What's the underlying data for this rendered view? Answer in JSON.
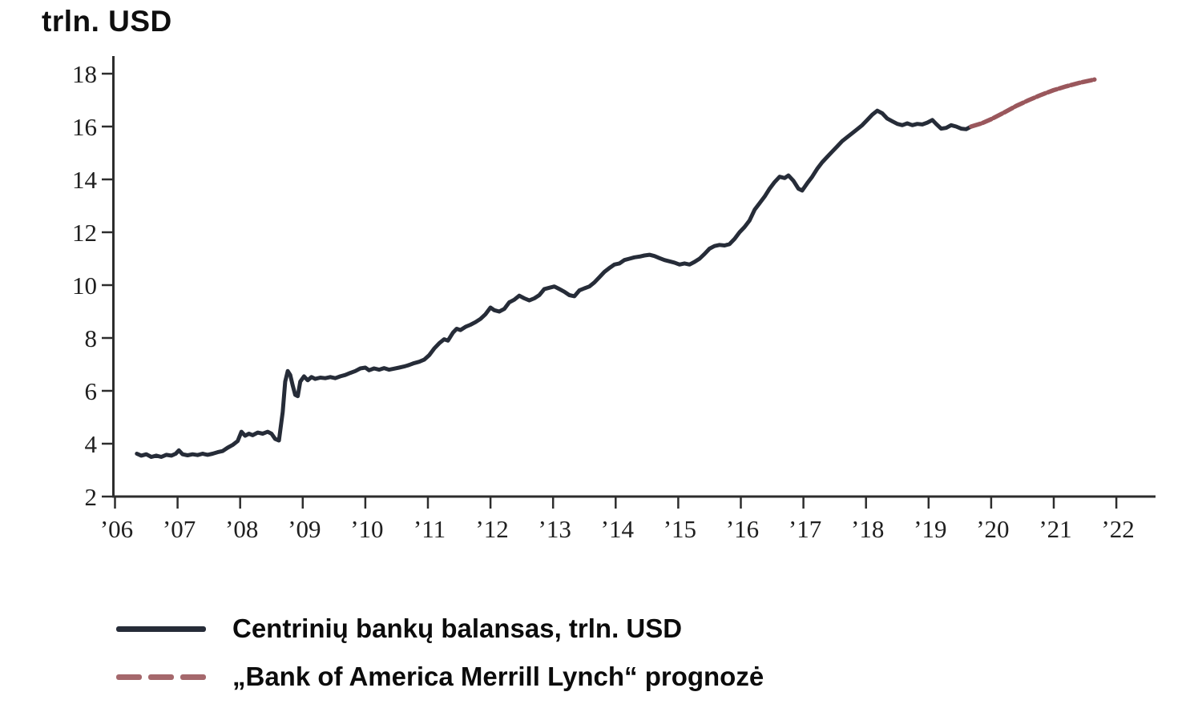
{
  "title": "trln. USD",
  "chart_data": {
    "type": "line",
    "title": "trln. USD",
    "xlabel": "",
    "ylabel": "trln. USD",
    "grid": false,
    "legend_position": "bottom-left",
    "xlim": [
      2006,
      2022.6
    ],
    "ylim": [
      2,
      18
    ],
    "y_ticks": [
      2,
      4,
      6,
      8,
      10,
      12,
      14,
      16,
      18
    ],
    "x_tick_years": [
      2006,
      2007,
      2008,
      2009,
      2010,
      2011,
      2012,
      2013,
      2014,
      2015,
      2016,
      2017,
      2018,
      2019,
      2020,
      2021,
      2022
    ],
    "x_tick_labels": [
      "’06",
      "’07",
      "’08",
      "’09",
      "’10",
      "’11",
      "’12",
      "’13",
      "’14",
      "’15",
      "’16",
      "’17",
      "’18",
      "’19",
      "’20",
      "’21",
      "’22"
    ],
    "axis_color": "#2d2d2d",
    "tick_label_color": "#1f1f1f",
    "series": [
      {
        "name": "Centrinių bankų balansas, trln. USD",
        "color": "#262c38",
        "style": "solid",
        "points": [
          [
            2006.35,
            3.62
          ],
          [
            2006.42,
            3.55
          ],
          [
            2006.5,
            3.6
          ],
          [
            2006.58,
            3.5
          ],
          [
            2006.66,
            3.55
          ],
          [
            2006.74,
            3.5
          ],
          [
            2006.82,
            3.58
          ],
          [
            2006.9,
            3.55
          ],
          [
            2006.97,
            3.62
          ],
          [
            2007.02,
            3.75
          ],
          [
            2007.08,
            3.6
          ],
          [
            2007.16,
            3.56
          ],
          [
            2007.24,
            3.6
          ],
          [
            2007.32,
            3.57
          ],
          [
            2007.4,
            3.62
          ],
          [
            2007.48,
            3.58
          ],
          [
            2007.56,
            3.62
          ],
          [
            2007.64,
            3.68
          ],
          [
            2007.72,
            3.72
          ],
          [
            2007.8,
            3.85
          ],
          [
            2007.88,
            3.95
          ],
          [
            2007.96,
            4.1
          ],
          [
            2008.02,
            4.45
          ],
          [
            2008.08,
            4.3
          ],
          [
            2008.14,
            4.38
          ],
          [
            2008.2,
            4.32
          ],
          [
            2008.28,
            4.42
          ],
          [
            2008.36,
            4.38
          ],
          [
            2008.44,
            4.45
          ],
          [
            2008.5,
            4.38
          ],
          [
            2008.56,
            4.18
          ],
          [
            2008.62,
            4.12
          ],
          [
            2008.68,
            5.2
          ],
          [
            2008.72,
            6.35
          ],
          [
            2008.76,
            6.75
          ],
          [
            2008.8,
            6.6
          ],
          [
            2008.84,
            6.2
          ],
          [
            2008.88,
            5.85
          ],
          [
            2008.92,
            5.8
          ],
          [
            2008.96,
            6.35
          ],
          [
            2009.02,
            6.55
          ],
          [
            2009.08,
            6.4
          ],
          [
            2009.14,
            6.52
          ],
          [
            2009.2,
            6.45
          ],
          [
            2009.28,
            6.5
          ],
          [
            2009.36,
            6.48
          ],
          [
            2009.44,
            6.52
          ],
          [
            2009.52,
            6.48
          ],
          [
            2009.6,
            6.55
          ],
          [
            2009.68,
            6.6
          ],
          [
            2009.76,
            6.68
          ],
          [
            2009.84,
            6.75
          ],
          [
            2009.92,
            6.85
          ],
          [
            2010.0,
            6.88
          ],
          [
            2010.06,
            6.78
          ],
          [
            2010.14,
            6.85
          ],
          [
            2010.22,
            6.8
          ],
          [
            2010.3,
            6.86
          ],
          [
            2010.38,
            6.8
          ],
          [
            2010.46,
            6.84
          ],
          [
            2010.54,
            6.88
          ],
          [
            2010.62,
            6.92
          ],
          [
            2010.7,
            6.98
          ],
          [
            2010.78,
            7.05
          ],
          [
            2010.86,
            7.1
          ],
          [
            2010.94,
            7.18
          ],
          [
            2011.02,
            7.35
          ],
          [
            2011.1,
            7.6
          ],
          [
            2011.18,
            7.8
          ],
          [
            2011.26,
            7.95
          ],
          [
            2011.32,
            7.9
          ],
          [
            2011.4,
            8.2
          ],
          [
            2011.46,
            8.35
          ],
          [
            2011.52,
            8.3
          ],
          [
            2011.6,
            8.42
          ],
          [
            2011.68,
            8.5
          ],
          [
            2011.76,
            8.6
          ],
          [
            2011.84,
            8.72
          ],
          [
            2011.92,
            8.9
          ],
          [
            2012.0,
            9.15
          ],
          [
            2012.06,
            9.05
          ],
          [
            2012.14,
            9.0
          ],
          [
            2012.22,
            9.1
          ],
          [
            2012.3,
            9.35
          ],
          [
            2012.38,
            9.45
          ],
          [
            2012.46,
            9.6
          ],
          [
            2012.54,
            9.5
          ],
          [
            2012.62,
            9.42
          ],
          [
            2012.7,
            9.5
          ],
          [
            2012.78,
            9.62
          ],
          [
            2012.86,
            9.85
          ],
          [
            2012.94,
            9.9
          ],
          [
            2013.02,
            9.95
          ],
          [
            2013.1,
            9.85
          ],
          [
            2013.18,
            9.75
          ],
          [
            2013.26,
            9.62
          ],
          [
            2013.34,
            9.58
          ],
          [
            2013.42,
            9.8
          ],
          [
            2013.5,
            9.88
          ],
          [
            2013.58,
            9.95
          ],
          [
            2013.66,
            10.1
          ],
          [
            2013.74,
            10.3
          ],
          [
            2013.82,
            10.5
          ],
          [
            2013.9,
            10.65
          ],
          [
            2013.98,
            10.78
          ],
          [
            2014.06,
            10.82
          ],
          [
            2014.14,
            10.95
          ],
          [
            2014.22,
            11.0
          ],
          [
            2014.3,
            11.05
          ],
          [
            2014.38,
            11.08
          ],
          [
            2014.46,
            11.12
          ],
          [
            2014.54,
            11.15
          ],
          [
            2014.62,
            11.1
          ],
          [
            2014.7,
            11.02
          ],
          [
            2014.78,
            10.95
          ],
          [
            2014.86,
            10.9
          ],
          [
            2014.94,
            10.85
          ],
          [
            2015.02,
            10.78
          ],
          [
            2015.1,
            10.82
          ],
          [
            2015.18,
            10.78
          ],
          [
            2015.26,
            10.88
          ],
          [
            2015.34,
            11.0
          ],
          [
            2015.42,
            11.18
          ],
          [
            2015.5,
            11.38
          ],
          [
            2015.58,
            11.48
          ],
          [
            2015.66,
            11.52
          ],
          [
            2015.74,
            11.5
          ],
          [
            2015.82,
            11.55
          ],
          [
            2015.9,
            11.75
          ],
          [
            2015.98,
            12.0
          ],
          [
            2016.06,
            12.2
          ],
          [
            2016.14,
            12.45
          ],
          [
            2016.22,
            12.85
          ],
          [
            2016.3,
            13.1
          ],
          [
            2016.38,
            13.35
          ],
          [
            2016.46,
            13.65
          ],
          [
            2016.54,
            13.9
          ],
          [
            2016.62,
            14.1
          ],
          [
            2016.7,
            14.05
          ],
          [
            2016.76,
            14.15
          ],
          [
            2016.84,
            13.95
          ],
          [
            2016.92,
            13.65
          ],
          [
            2016.98,
            13.58
          ],
          [
            2017.06,
            13.85
          ],
          [
            2017.14,
            14.1
          ],
          [
            2017.22,
            14.4
          ],
          [
            2017.3,
            14.65
          ],
          [
            2017.38,
            14.85
          ],
          [
            2017.46,
            15.05
          ],
          [
            2017.54,
            15.25
          ],
          [
            2017.62,
            15.45
          ],
          [
            2017.7,
            15.6
          ],
          [
            2017.78,
            15.75
          ],
          [
            2017.86,
            15.9
          ],
          [
            2017.94,
            16.05
          ],
          [
            2018.02,
            16.25
          ],
          [
            2018.1,
            16.45
          ],
          [
            2018.18,
            16.6
          ],
          [
            2018.26,
            16.5
          ],
          [
            2018.34,
            16.3
          ],
          [
            2018.42,
            16.2
          ],
          [
            2018.5,
            16.1
          ],
          [
            2018.58,
            16.05
          ],
          [
            2018.66,
            16.12
          ],
          [
            2018.74,
            16.05
          ],
          [
            2018.82,
            16.1
          ],
          [
            2018.9,
            16.08
          ],
          [
            2018.98,
            16.15
          ],
          [
            2019.06,
            16.25
          ],
          [
            2019.12,
            16.1
          ],
          [
            2019.2,
            15.92
          ],
          [
            2019.28,
            15.95
          ],
          [
            2019.36,
            16.05
          ],
          [
            2019.44,
            16.0
          ],
          [
            2019.52,
            15.92
          ],
          [
            2019.6,
            15.9
          ],
          [
            2019.68,
            16.0
          ]
        ]
      },
      {
        "name": "„Bank of America Merrill Lynch“ prognozė",
        "color": "#9a575c",
        "legend_color": "#a5686c",
        "style": "dashed",
        "points": [
          [
            2019.68,
            16.0
          ],
          [
            2019.85,
            16.12
          ],
          [
            2020.0,
            16.28
          ],
          [
            2020.2,
            16.52
          ],
          [
            2020.4,
            16.78
          ],
          [
            2020.6,
            17.0
          ],
          [
            2020.8,
            17.2
          ],
          [
            2021.0,
            17.38
          ],
          [
            2021.2,
            17.52
          ],
          [
            2021.4,
            17.65
          ],
          [
            2021.65,
            17.78
          ]
        ]
      }
    ]
  }
}
